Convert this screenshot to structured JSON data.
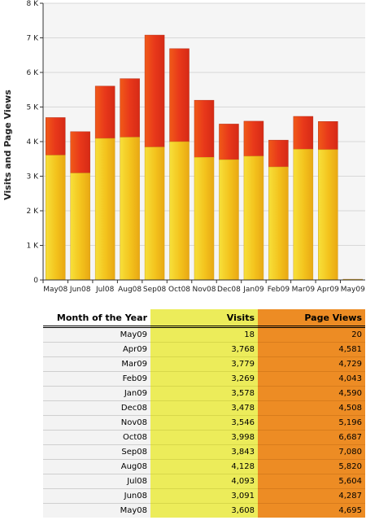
{
  "chart_data": {
    "type": "bar",
    "stacked_overlay": true,
    "ylabel": "Visits and Page Views",
    "xlabel": "",
    "ylim": [
      0,
      8000
    ],
    "ytick_labels": [
      "0",
      "1 K",
      "2 K",
      "3 K",
      "4 K",
      "5 K",
      "6 K",
      "7 K",
      "8 K"
    ],
    "categories": [
      "May08",
      "Jun08",
      "Jul08",
      "Aug08",
      "Sep08",
      "Oct08",
      "Nov08",
      "Dec08",
      "Jan09",
      "Feb09",
      "Mar09",
      "Apr09",
      "May09"
    ],
    "series": [
      {
        "name": "Visits",
        "color": "#f2c81c",
        "values": [
          3608,
          3091,
          4093,
          4128,
          3843,
          3998,
          3546,
          3478,
          3578,
          3269,
          3779,
          3768,
          18
        ]
      },
      {
        "name": "Page Views",
        "color": "#e8501c",
        "values": [
          4695,
          4287,
          5604,
          5820,
          7080,
          6687,
          5196,
          4508,
          4590,
          4043,
          4729,
          4581,
          20
        ]
      }
    ],
    "grid": true
  },
  "table": {
    "headers": [
      "Month of the Year",
      "Visits",
      "Page Views"
    ],
    "rows": [
      [
        "May09",
        "18",
        "20"
      ],
      [
        "Apr09",
        "3,768",
        "4,581"
      ],
      [
        "Mar09",
        "3,779",
        "4,729"
      ],
      [
        "Feb09",
        "3,269",
        "4,043"
      ],
      [
        "Jan09",
        "3,578",
        "4,590"
      ],
      [
        "Dec08",
        "3,478",
        "4,508"
      ],
      [
        "Nov08",
        "3,546",
        "5,196"
      ],
      [
        "Oct08",
        "3,998",
        "6,687"
      ],
      [
        "Sep08",
        "3,843",
        "7,080"
      ],
      [
        "Aug08",
        "4,128",
        "5,820"
      ],
      [
        "Jul08",
        "4,093",
        "5,604"
      ],
      [
        "Jun08",
        "3,091",
        "4,287"
      ],
      [
        "May08",
        "3,608",
        "4,695"
      ]
    ],
    "colors": {
      "visits": "#ecec5a",
      "page_views": "#ed8c24"
    }
  }
}
